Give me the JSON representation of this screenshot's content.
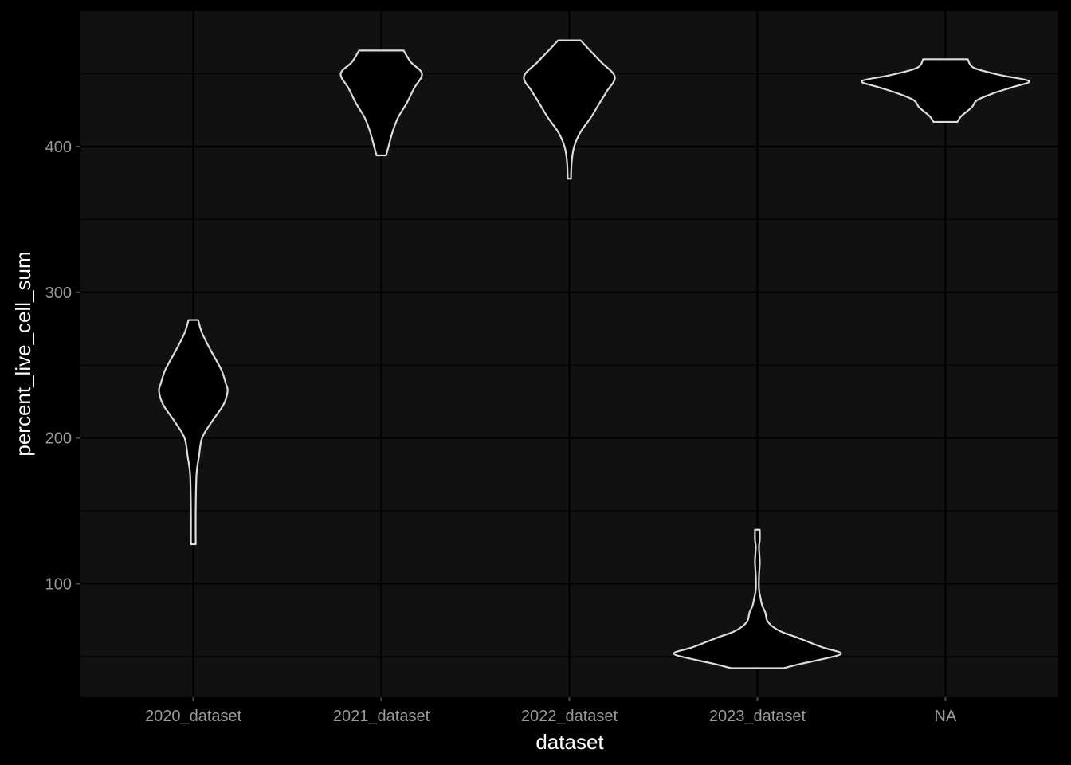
{
  "chart_data": {
    "type": "violin",
    "xlabel": "dataset",
    "ylabel": "percent_live_cell_sum",
    "categories": [
      "2020_dataset",
      "2021_dataset",
      "2022_dataset",
      "2023_dataset",
      "NA"
    ],
    "yticks": [
      100,
      200,
      300,
      400
    ],
    "ylim": [
      22,
      493
    ],
    "grid": true,
    "colors": {
      "background": "#000000",
      "panel": "#111111",
      "grid": "#000000",
      "violin_fill": "#000000",
      "violin_outline": "#dcdcdc",
      "tick_text": "#9a9a9a",
      "title_text": "#ffffff"
    },
    "series": [
      {
        "category": "2020_dataset",
        "min": 127,
        "max": 281,
        "profile": [
          [
            127,
            3
          ],
          [
            150,
            3
          ],
          [
            175,
            4
          ],
          [
            187,
            7
          ],
          [
            200,
            11
          ],
          [
            211,
            23
          ],
          [
            223,
            38
          ],
          [
            232,
            43
          ],
          [
            237,
            41
          ],
          [
            247,
            35
          ],
          [
            260,
            22
          ],
          [
            272,
            11
          ],
          [
            281,
            6
          ]
        ]
      },
      {
        "category": "2021_dataset",
        "min": 394,
        "max": 466,
        "profile": [
          [
            394,
            6
          ],
          [
            400,
            9
          ],
          [
            410,
            14
          ],
          [
            420,
            21
          ],
          [
            430,
            32
          ],
          [
            440,
            41
          ],
          [
            450,
            51
          ],
          [
            458,
            37
          ],
          [
            466,
            28
          ]
        ]
      },
      {
        "category": "2022_dataset",
        "min": 378,
        "max": 473,
        "profile": [
          [
            378,
            2
          ],
          [
            390,
            3
          ],
          [
            400,
            6
          ],
          [
            410,
            14
          ],
          [
            420,
            27
          ],
          [
            430,
            38
          ],
          [
            438,
            47
          ],
          [
            448,
            57
          ],
          [
            458,
            40
          ],
          [
            466,
            26
          ],
          [
            473,
            14
          ]
        ]
      },
      {
        "category": "2023_dataset",
        "min": 42,
        "max": 137,
        "profile": [
          [
            42,
            33
          ],
          [
            45,
            55
          ],
          [
            48,
            80
          ],
          [
            52,
            105
          ],
          [
            56,
            83
          ],
          [
            60,
            64
          ],
          [
            63,
            50
          ],
          [
            67,
            30
          ],
          [
            71,
            18
          ],
          [
            75,
            12
          ],
          [
            80,
            10
          ],
          [
            85,
            6
          ],
          [
            90,
            4
          ],
          [
            96,
            2
          ],
          [
            105,
            2
          ],
          [
            115,
            3
          ],
          [
            125,
            2
          ],
          [
            130,
            3
          ],
          [
            137,
            3
          ]
        ]
      },
      {
        "category": "NA",
        "min": 417,
        "max": 460,
        "profile": [
          [
            417,
            15
          ],
          [
            421,
            20
          ],
          [
            427,
            33
          ],
          [
            432,
            40
          ],
          [
            437,
            62
          ],
          [
            441,
            85
          ],
          [
            445,
            105
          ],
          [
            449,
            70
          ],
          [
            454,
            36
          ],
          [
            460,
            28
          ]
        ]
      }
    ]
  }
}
